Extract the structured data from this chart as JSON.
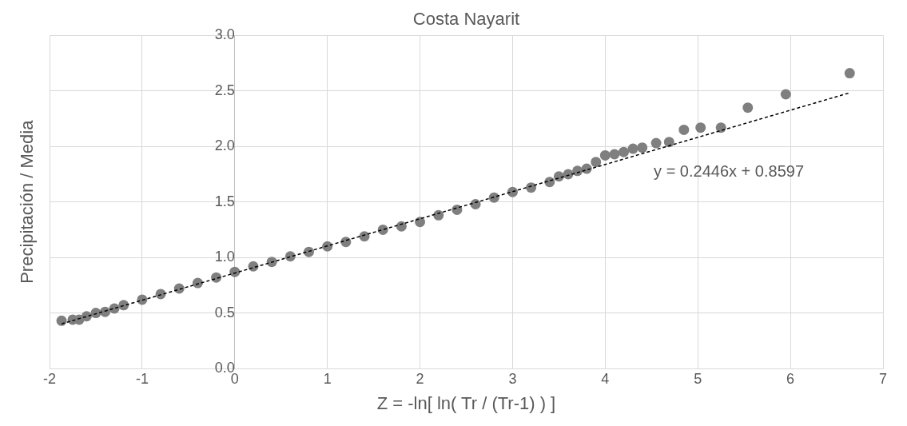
{
  "chart_data": {
    "type": "scatter",
    "title": "Costa Nayarit",
    "xlabel": "Z = -ln[ ln( Tr / (Tr-1) ) ]",
    "ylabel": "Precipitación / Media",
    "xlim": [
      -2,
      7
    ],
    "xticks": [
      -2,
      -1,
      0,
      1,
      2,
      3,
      4,
      5,
      6,
      7
    ],
    "ylim": [
      0,
      3
    ],
    "yticks": [
      {
        "value": 0,
        "label": "0.0"
      },
      {
        "value": 0.5,
        "label": "0.5"
      },
      {
        "value": 1,
        "label": "1.0"
      },
      {
        "value": 1.5,
        "label": "1.5"
      },
      {
        "value": 2,
        "label": "2.0"
      },
      {
        "value": 2.5,
        "label": "2.5"
      },
      {
        "value": 3,
        "label": "3.0"
      }
    ],
    "grid": true,
    "legend": false,
    "marker": "circle",
    "annotations": [
      "y = 0.2446x + 0.8597"
    ],
    "series": [
      {
        "color": "#7f7f7f",
        "x": [
          -1.87,
          -1.75,
          -1.68,
          -1.6,
          -1.5,
          -1.4,
          -1.3,
          -1.2,
          -1.0,
          -0.8,
          -0.6,
          -0.4,
          -0.2,
          0,
          0.2,
          0.4,
          0.6,
          0.8,
          1.0,
          1.2,
          1.4,
          1.6,
          1.8,
          2.0,
          2.2,
          2.4,
          2.6,
          2.8,
          3.0,
          3.2,
          3.4,
          3.5,
          3.6,
          3.7,
          3.8,
          3.9,
          4.0,
          4.1,
          4.2,
          4.3,
          4.4,
          4.55,
          4.69,
          4.85,
          5.03,
          5.25,
          5.54,
          5.95,
          6.64
        ],
        "values": [
          0.43,
          0.44,
          0.44,
          0.47,
          0.5,
          0.51,
          0.54,
          0.57,
          0.62,
          0.67,
          0.72,
          0.77,
          0.82,
          0.87,
          0.92,
          0.96,
          1.01,
          1.05,
          1.1,
          1.14,
          1.19,
          1.25,
          1.28,
          1.32,
          1.38,
          1.43,
          1.48,
          1.54,
          1.59,
          1.63,
          1.68,
          1.73,
          1.75,
          1.78,
          1.8,
          1.86,
          1.92,
          1.93,
          1.95,
          1.98,
          1.99,
          2.03,
          2.04,
          2.15,
          2.17,
          2.17,
          2.35,
          2.47,
          2.66
        ]
      },
      {
        "type": "line",
        "color": "#000000",
        "line_style": "dashed",
        "marker": "none",
        "x": [
          -1.87,
          6.63
        ],
        "values": [
          0.402,
          2.481
        ]
      }
    ]
  }
}
